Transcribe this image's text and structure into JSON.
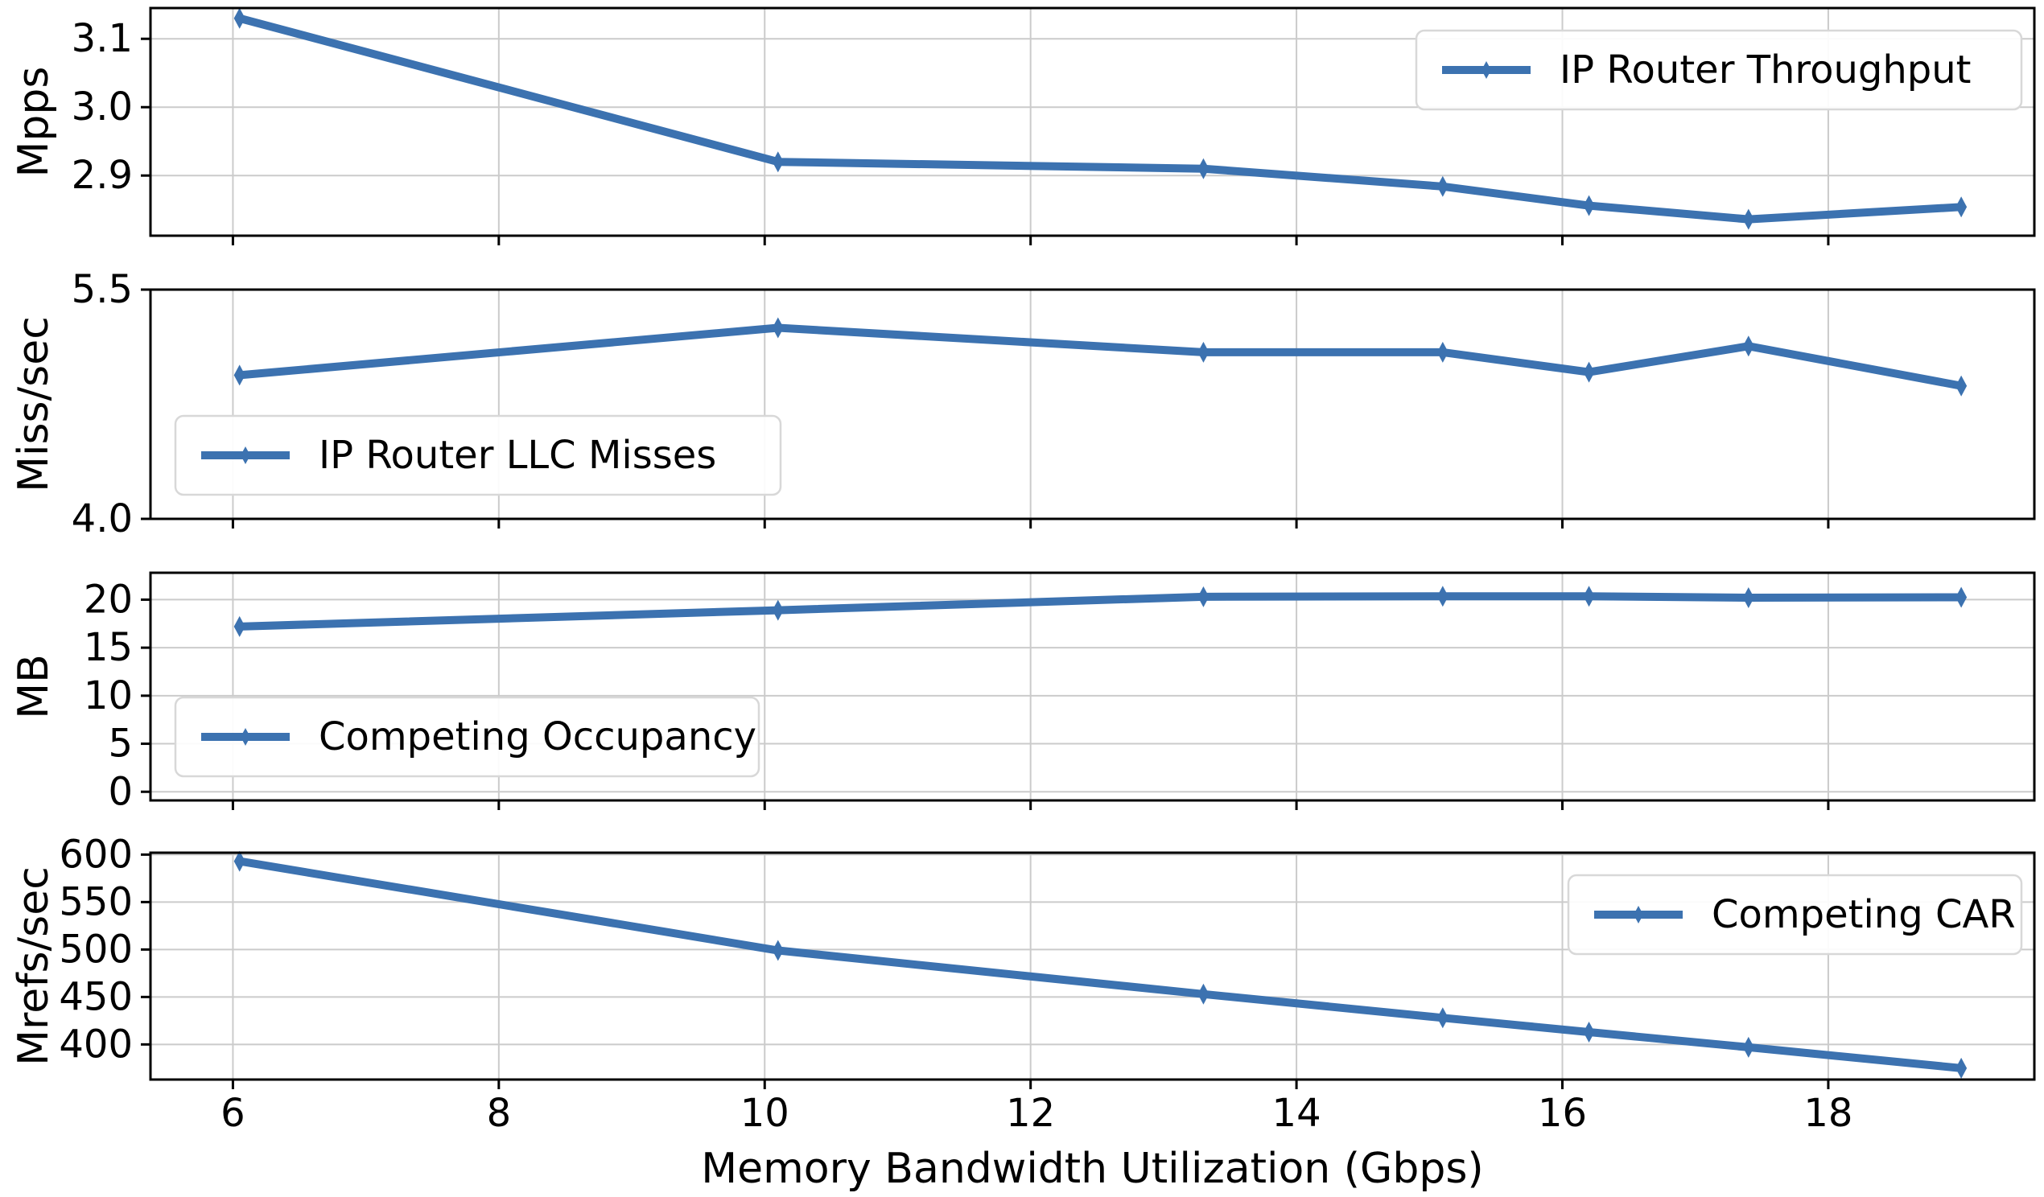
{
  "figure": {
    "background": "#ffffff",
    "text_color": "#000000"
  },
  "chart_data": {
    "type": "line",
    "title": "",
    "xlabel": "Memory Bandwidth Utilization (Gbps)",
    "x": [
      6.05,
      10.1,
      13.3,
      15.1,
      16.2,
      17.4,
      19.0
    ],
    "xlim": [
      5.38,
      19.55
    ],
    "xticks": [
      6,
      8,
      10,
      12,
      14,
      16,
      18
    ],
    "xtick_labels": [
      "6",
      "8",
      "10",
      "12",
      "14",
      "16",
      "18"
    ],
    "grid": true,
    "grid_color": "#cbcbcb",
    "frame_color": "#000000",
    "line_color": "#3c72b0",
    "marker": "thin-diamond",
    "legend_border_color": "#d8d8d8",
    "panels": [
      {
        "ylabel": "Mpps",
        "legend": "IP Router Throughput",
        "legend_pos": "top-right",
        "ylim": [
          2.812,
          3.145
        ],
        "yticks": [
          2.9,
          3.0,
          3.1
        ],
        "ytick_labels": [
          "2.9",
          "3.0",
          "3.1"
        ],
        "values": [
          3.13,
          2.92,
          2.91,
          2.884,
          2.856,
          2.836,
          2.854
        ]
      },
      {
        "ylabel": "Miss/sec",
        "legend": "IP Router LLC Misses",
        "legend_pos": "bottom-left",
        "ylim": [
          4.0,
          5.5
        ],
        "yticks": [
          4.0,
          5.5
        ],
        "ytick_labels": [
          "4.0",
          "5.5"
        ],
        "values": [
          4.94,
          5.25,
          5.09,
          5.09,
          4.96,
          5.13,
          4.87
        ]
      },
      {
        "ylabel": "MB",
        "legend": "Competing Occupancy",
        "legend_pos": "bottom-left",
        "ylim": [
          -0.9,
          22.8
        ],
        "yticks": [
          0,
          5,
          10,
          15,
          20
        ],
        "ytick_labels": [
          "0",
          "5",
          "10",
          "15",
          "20"
        ],
        "values": [
          17.2,
          18.9,
          20.3,
          20.35,
          20.35,
          20.2,
          20.25
        ]
      },
      {
        "ylabel": "Mrefs/sec",
        "legend": "Competing CAR",
        "legend_pos": "top-right",
        "ylim": [
          363,
          602
        ],
        "yticks": [
          400,
          450,
          500,
          550,
          600
        ],
        "ytick_labels": [
          "400",
          "450",
          "500",
          "550",
          "600"
        ],
        "values": [
          593,
          499,
          453,
          428,
          413,
          397,
          375
        ]
      }
    ]
  }
}
